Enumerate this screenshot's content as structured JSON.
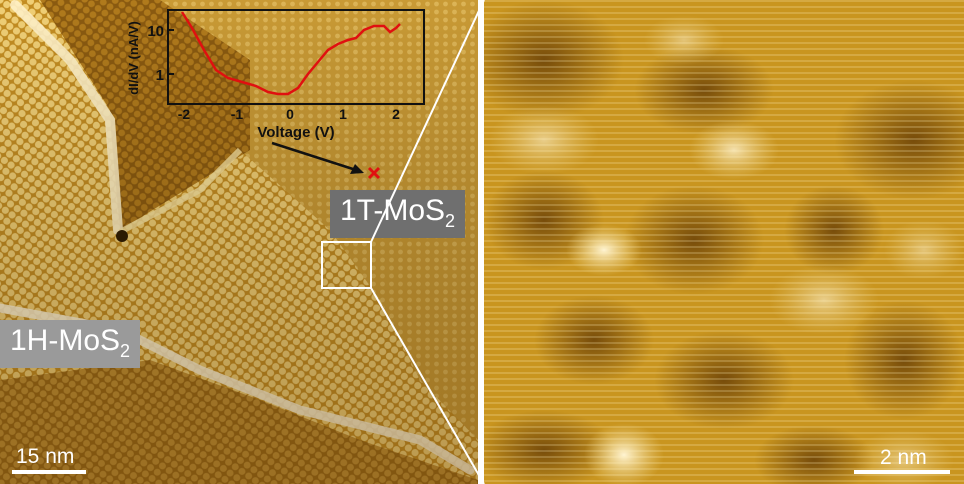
{
  "left_image": {
    "label_1t": {
      "main": "1T-MoS",
      "sub": "2"
    },
    "label_1h": {
      "main": "1H-MoS",
      "sub": "2"
    },
    "scale_bar": "15 nm"
  },
  "right_image": {
    "scale_bar": "2 nm"
  },
  "inset": {
    "ylabel": "dI/dV (nA/V)",
    "xlabel": "Voltage (V)",
    "xticks": [
      "-2",
      "-1",
      "0",
      "1",
      "2"
    ],
    "yticks": [
      "10",
      "1"
    ]
  },
  "colors": {
    "stm_light": "#f2d88a",
    "stm_mid": "#c9951f",
    "stm_dark": "#6e4408",
    "curve": "#e01010",
    "marker": "#e01010"
  }
}
